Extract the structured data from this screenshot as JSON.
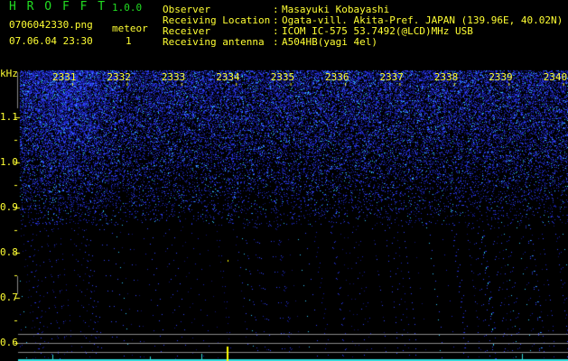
{
  "app": {
    "title": "H R O F F T",
    "version": "1.0.0"
  },
  "file": {
    "name": "0706042330.png",
    "datetime": "07.06.04 23:30"
  },
  "meteor": {
    "label": "meteor",
    "count": "1"
  },
  "info": [
    {
      "label": "Observer",
      "value": "Masayuki Kobayashi"
    },
    {
      "label": "Receiving Location",
      "value": "Ogata-vill. Akita-Pref. JAPAN (139.96E, 40.02N)"
    },
    {
      "label": "Receiver",
      "value": "ICOM IC-575 53.7492(@LCD)MHz USB"
    },
    {
      "label": "Receiving antenna",
      "value": "A504HB(yagi 4el)"
    }
  ],
  "spectrogram": {
    "y_unit": "kHz",
    "y_ticks": [
      "1.1",
      "1.0",
      "0.9",
      "0.8",
      "0.7",
      "0.6"
    ],
    "x_ticks": [
      "2331",
      "2332",
      "2333",
      "2334",
      "2335",
      "2336",
      "2337",
      "2338",
      "2339",
      "2340"
    ],
    "colors": {
      "noise": "#2233ff",
      "axis": "#ffff33",
      "baseline": "#33dddd",
      "meteor": "#ffff00",
      "grid": "#888888"
    }
  }
}
